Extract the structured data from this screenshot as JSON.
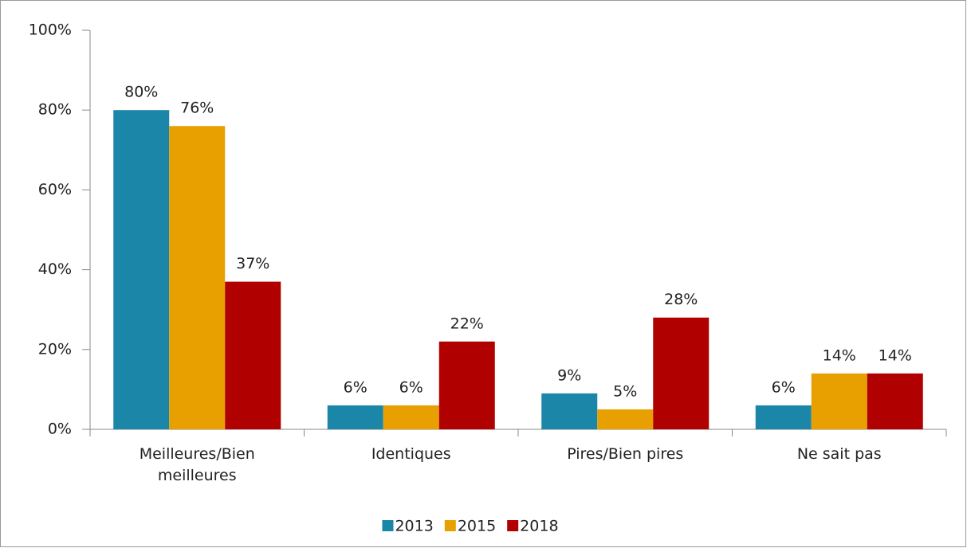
{
  "chart_data": {
    "type": "bar",
    "categories": [
      "Meilleures/Bien meilleures",
      "Identiques",
      "Pires/Bien pires",
      "Ne sait pas"
    ],
    "series": [
      {
        "name": "2013",
        "color": "#1b86a8",
        "values": [
          80,
          6,
          9,
          6
        ],
        "value_labels": [
          "80%",
          "6%",
          "9%",
          "6%"
        ]
      },
      {
        "name": "2015",
        "color": "#e8a000",
        "values": [
          76,
          6,
          5,
          14
        ],
        "value_labels": [
          "76%",
          "6%",
          "5%",
          "14%"
        ]
      },
      {
        "name": "2018",
        "color": "#b00000",
        "values": [
          37,
          22,
          28,
          14
        ],
        "value_labels": [
          "37%",
          "22%",
          "28%",
          "14%"
        ]
      }
    ],
    "ylim": [
      0,
      100
    ],
    "yticks": [
      {
        "value": 0,
        "label": "0%"
      },
      {
        "value": 20,
        "label": "20%"
      },
      {
        "value": 40,
        "label": "40%"
      },
      {
        "value": 60,
        "label": "60%"
      },
      {
        "value": 80,
        "label": "80%"
      },
      {
        "value": 100,
        "label": "100%"
      }
    ],
    "legend": "bottom"
  }
}
